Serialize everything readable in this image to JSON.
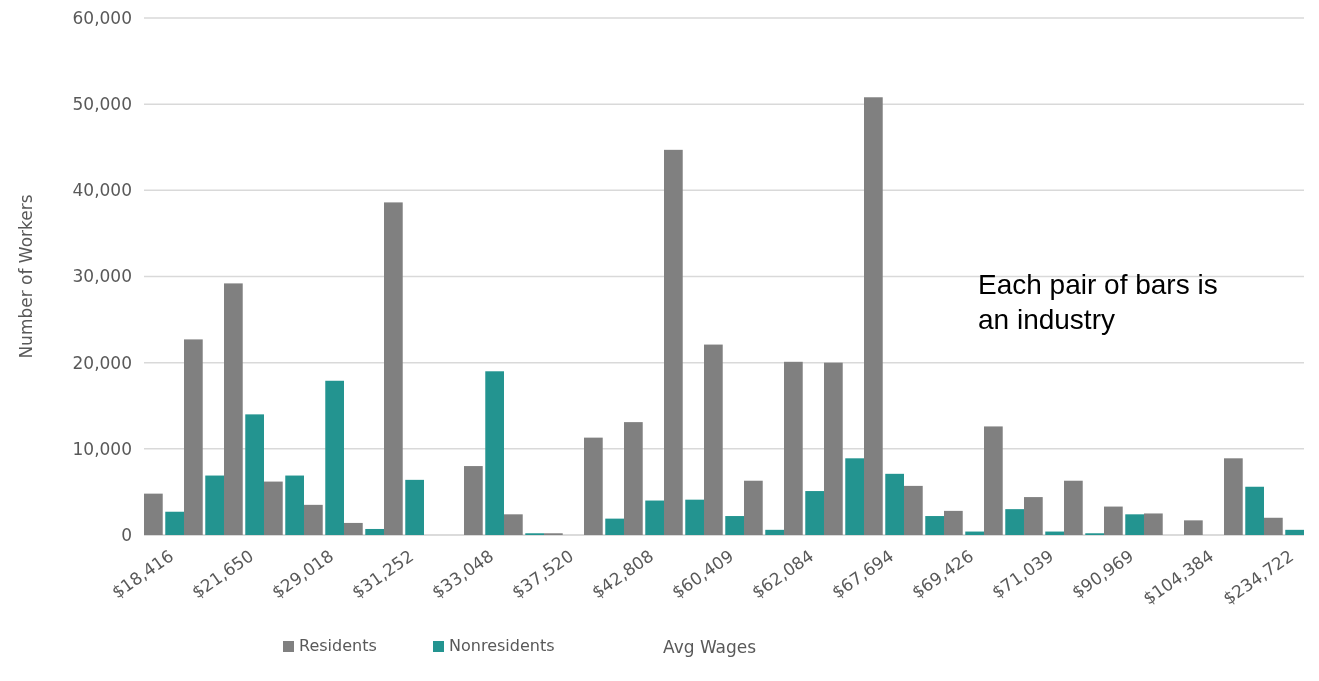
{
  "chart_data": {
    "type": "bar",
    "xlabel": "Avg Wages",
    "ylabel": "Number of Workers",
    "categories": [
      "$18,416",
      null,
      "$21,650",
      null,
      "$29,018",
      null,
      "$31,252",
      null,
      "$33,048",
      null,
      "$37,520",
      null,
      "$42,808",
      null,
      "$60,409",
      null,
      "$62,084",
      null,
      "$67,694",
      null,
      "$69,426",
      null,
      "$71,039",
      null,
      "$90,969",
      null,
      "$104,384",
      null,
      "$234,722"
    ],
    "series": [
      {
        "name": "Residents",
        "color": "#808080",
        "values": [
          4800,
          22700,
          29200,
          6200,
          3500,
          1400,
          38600,
          0,
          8000,
          2400,
          200,
          11300,
          13100,
          44700,
          22100,
          6300,
          20100,
          20000,
          50800,
          5700,
          2800,
          12600,
          4400,
          6300,
          3300,
          2500,
          1700,
          8900,
          2000
        ]
      },
      {
        "name": "Nonresidents",
        "color": "#239490",
        "values": [
          2700,
          6900,
          14000,
          6900,
          17900,
          700,
          6400,
          0,
          19000,
          200,
          0,
          1900,
          4000,
          4100,
          2200,
          600,
          5100,
          8900,
          7100,
          2200,
          400,
          3000,
          400,
          200,
          2400,
          0,
          0,
          5600,
          600
        ]
      }
    ],
    "ylim": [
      0,
      60000
    ],
    "yticks": [
      {
        "value": 0,
        "label": "0"
      },
      {
        "value": 10000,
        "label": "10,000"
      },
      {
        "value": 20000,
        "label": "20,000"
      },
      {
        "value": 30000,
        "label": "30,000"
      },
      {
        "value": 40000,
        "label": "40,000"
      },
      {
        "value": 50000,
        "label": "50,000"
      },
      {
        "value": 60000,
        "label": "60,000"
      }
    ],
    "grid": "y",
    "legend": "bottom",
    "annotations": [
      "Each pair of bars is an industry"
    ]
  }
}
